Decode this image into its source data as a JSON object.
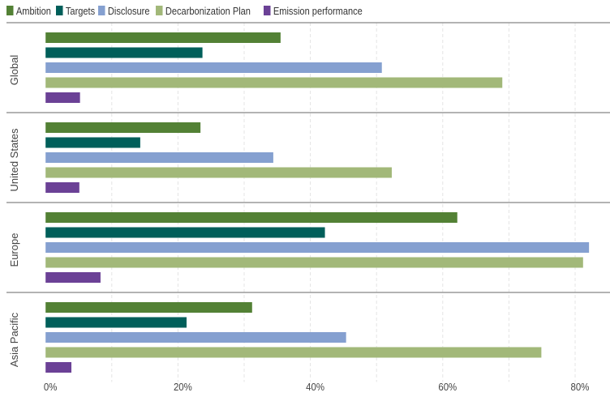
{
  "chart_data": {
    "type": "bar",
    "orientation": "horizontal",
    "categories": [
      "Global",
      "United States",
      "Europe",
      "Asia Pacific"
    ],
    "series": [
      {
        "name": "Ambition",
        "color": "#538135",
        "values": [
          35.5,
          23.4,
          62.2,
          31.2
        ]
      },
      {
        "name": "Targets",
        "color": "#005f5a",
        "values": [
          23.7,
          14.3,
          42.2,
          21.3
        ]
      },
      {
        "name": "Disclosure",
        "color": "#85a0d0",
        "values": [
          50.8,
          34.4,
          82.1,
          45.4
        ]
      },
      {
        "name": "Decarbonization Plan",
        "color": "#a2b879",
        "values": [
          69.0,
          52.3,
          81.2,
          74.9
        ]
      },
      {
        "name": "Emission performance",
        "color": "#6b4196",
        "values": [
          5.2,
          5.1,
          8.3,
          3.9
        ]
      }
    ],
    "xticks": [
      "0%",
      "20%",
      "40%",
      "60%",
      "80%"
    ],
    "xtick_values": [
      0,
      20,
      40,
      60,
      80
    ],
    "xlim": [
      0,
      85
    ],
    "grid": "vertical dashed every 10%",
    "legend": "top-left"
  }
}
